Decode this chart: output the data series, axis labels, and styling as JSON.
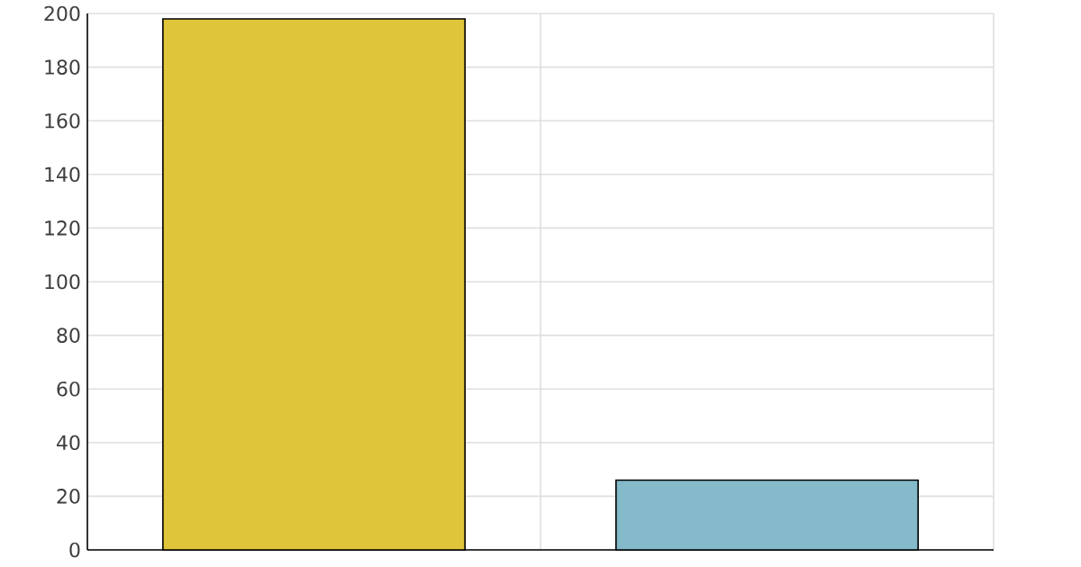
{
  "chart_data": {
    "type": "bar",
    "categories": [
      null,
      null
    ],
    "values": [
      198,
      26
    ],
    "colors": [
      "#dfc53a",
      "#84bac9"
    ],
    "ylim": [
      0,
      200
    ],
    "yticks": [
      0,
      20,
      40,
      60,
      80,
      100,
      120,
      140,
      160,
      180,
      200
    ],
    "grid": true
  }
}
